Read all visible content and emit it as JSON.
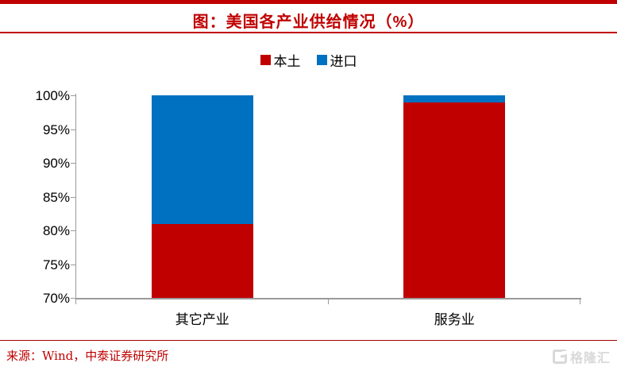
{
  "title": "图：美国各产业供给情况（%）",
  "source": "来源：Wind，中泰证券研究所",
  "watermark": {
    "icon": "G",
    "text": "格隆汇"
  },
  "colors": {
    "accent_red": "#C00000",
    "bar_red": "#C00000",
    "bar_blue": "#0070C0",
    "axis_gray": "#9a9a9a",
    "watermark_gray": "#d9d9d9"
  },
  "chart_data": {
    "type": "bar",
    "stacked": true,
    "title": "图：美国各产业供给情况（%）",
    "categories": [
      "其它产业",
      "服务业"
    ],
    "series": [
      {
        "name": "本土",
        "color": "#C00000",
        "values": [
          81,
          99
        ]
      },
      {
        "name": "进口",
        "color": "#0070C0",
        "values": [
          19,
          1
        ]
      }
    ],
    "xlabel": "",
    "ylabel": "",
    "ylim": [
      70,
      100
    ],
    "ytick_step": 5,
    "ytick_labels": [
      "70%",
      "75%",
      "80%",
      "85%",
      "90%",
      "95%",
      "100%"
    ],
    "legend_position": "top-center",
    "grid": false
  }
}
